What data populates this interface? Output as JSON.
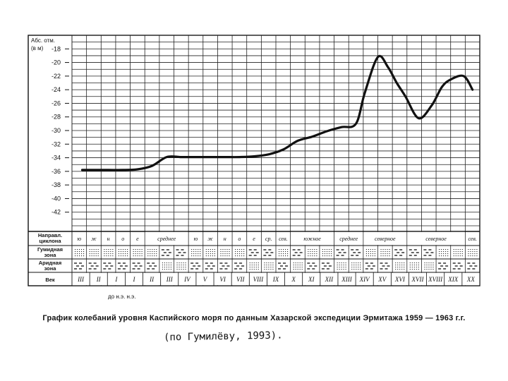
{
  "chart_data": {
    "type": "line",
    "ylabel_lines": [
      "Абс. отм.",
      "(в   м)"
    ],
    "y_ticks": [
      -18,
      -20,
      -22,
      -24,
      -26,
      -28,
      -30,
      -32,
      -34,
      -36,
      -38,
      -40,
      -42
    ],
    "ylim": [
      -44,
      -16
    ],
    "grid": true,
    "columns": 28,
    "x": [
      1.2,
      2,
      3,
      4,
      5,
      6,
      7,
      8,
      9,
      10,
      11,
      12,
      13,
      14,
      15,
      16,
      17,
      18,
      19,
      20,
      20.6,
      21.5,
      22.2,
      22.8,
      23.4,
      24.3,
      25.2,
      25.9,
      26.5,
      27.4,
      28
    ],
    "series": [
      {
        "values": [
          -35.8,
          -35.8,
          -35.8,
          -35.8,
          -35.7,
          -35.2,
          -33.9,
          -33.9,
          -33.9,
          -33.9,
          -33.9,
          -33.9,
          -33.8,
          -33.5,
          -32.8,
          -31.5,
          -30.9,
          -30.1,
          -29.5,
          -29.0,
          -24.5,
          -19.2,
          -20.7,
          -23.0,
          -25.0,
          -28.2,
          -26.3,
          -23.6,
          -22.5,
          -22.0,
          -24.0
        ]
      }
    ],
    "row_labels": [
      "Направл. циклона",
      "Гумидная зона",
      "Аридная зона",
      "Век"
    ],
    "cyclone_cells": [
      {
        "span": [
          0,
          1
        ],
        "text": "ю"
      },
      {
        "span": [
          1,
          2
        ],
        "text": "ж"
      },
      {
        "span": [
          2,
          3
        ],
        "text": "н"
      },
      {
        "span": [
          3,
          4
        ],
        "text": "о"
      },
      {
        "span": [
          4,
          5
        ],
        "text": "е"
      },
      {
        "span": [
          5,
          8
        ],
        "text": "среднее"
      },
      {
        "span": [
          8,
          9
        ],
        "text": "ю"
      },
      {
        "span": [
          9,
          10
        ],
        "text": "ж"
      },
      {
        "span": [
          10,
          11
        ],
        "text": "н"
      },
      {
        "span": [
          11,
          12
        ],
        "text": "о"
      },
      {
        "span": [
          12,
          13
        ],
        "text": "е"
      },
      {
        "span": [
          13,
          14
        ],
        "text": "ср."
      },
      {
        "span": [
          14,
          15
        ],
        "text": "сев."
      },
      {
        "span": [
          15,
          18
        ],
        "text": "южное"
      },
      {
        "span": [
          18,
          20
        ],
        "text": "среднее"
      },
      {
        "span": [
          20,
          23
        ],
        "text": "северное"
      },
      {
        "span": [
          23,
          27
        ],
        "text": "северное"
      },
      {
        "span": [
          27,
          28
        ],
        "text": "сев."
      }
    ],
    "humid_pattern": [
      "dots",
      "dots",
      "dots",
      "dots",
      "dots",
      "dots",
      "dash",
      "dash",
      "dots",
      "dots",
      "dots",
      "dots",
      "dash",
      "dash",
      "dots",
      "dash",
      "dots",
      "dots",
      "dash",
      "dash",
      "dots",
      "dots",
      "dash",
      "dash",
      "dash",
      "dots",
      "dots",
      "dots"
    ],
    "arid_pattern": [
      "dash",
      "dash",
      "dash",
      "dash",
      "dash",
      "dash",
      "dots",
      "dots",
      "dash",
      "dash",
      "dash",
      "dash",
      "dots",
      "dots",
      "dash",
      "dots",
      "dash",
      "dash",
      "dots",
      "dots",
      "dash",
      "dash",
      "dots",
      "dots",
      "dots",
      "dash",
      "dash",
      "dash"
    ],
    "centuries": [
      "III",
      "II",
      "I",
      "I",
      "II",
      "III",
      "IV",
      "V",
      "VI",
      "VII",
      "VIII",
      "IX",
      "X",
      "XI",
      "XII",
      "XIII",
      "XIV",
      "XV",
      "XVI",
      "XVII",
      "XVIII",
      "XIX",
      "XX"
    ],
    "century_spans": [
      [
        0,
        1
      ],
      [
        1,
        2
      ],
      [
        2,
        3
      ],
      [
        3,
        4
      ],
      [
        4,
        5
      ],
      [
        5,
        6
      ],
      [
        6,
        7
      ],
      [
        7,
        8
      ],
      [
        8,
        9
      ],
      [
        9,
        10
      ],
      [
        10,
        11
      ],
      [
        11,
        12
      ],
      [
        12,
        13
      ],
      [
        13,
        14
      ],
      [
        14,
        15
      ],
      [
        15,
        16
      ],
      [
        16,
        17
      ],
      [
        17,
        18
      ],
      [
        18,
        19
      ],
      [
        19,
        20
      ],
      [
        20,
        21
      ],
      [
        21,
        22
      ],
      [
        22,
        23
      ]
    ]
  },
  "era_labels": "до н.э.   н.э.",
  "caption": "График колебаний уровня Каспийского моря по данным Хазарской экспедиции Эрмитажа 1959 — 1963 г.г.",
  "handwritten_note": "(по Гумилёву, 1993)."
}
